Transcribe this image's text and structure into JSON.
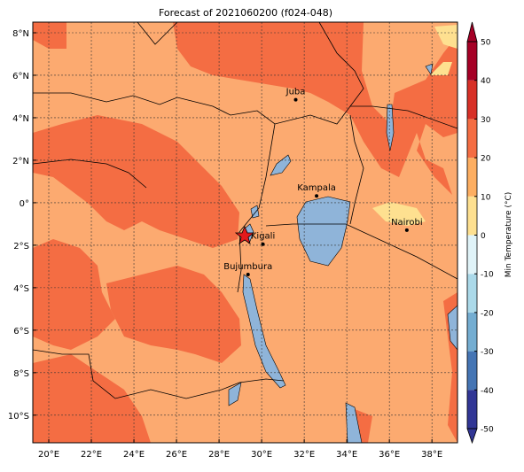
{
  "title": "Forecast of 2021060200 (f024-048)",
  "map": {
    "xlim": [
      19.25,
      39.2
    ],
    "ylim": [
      -11.3,
      8.5
    ],
    "xticks": [
      {
        "value": 20,
        "label": "20°E"
      },
      {
        "value": 22,
        "label": "22°E"
      },
      {
        "value": 24,
        "label": "24°E"
      },
      {
        "value": 26,
        "label": "26°E"
      },
      {
        "value": 28,
        "label": "28°E"
      },
      {
        "value": 30,
        "label": "30°E"
      },
      {
        "value": 32,
        "label": "32°E"
      },
      {
        "value": 34,
        "label": "34°E"
      },
      {
        "value": 36,
        "label": "36°E"
      },
      {
        "value": 38,
        "label": "38°E"
      }
    ],
    "yticks": [
      {
        "value": 8,
        "label": "8°N"
      },
      {
        "value": 6,
        "label": "6°N"
      },
      {
        "value": 4,
        "label": "4°N"
      },
      {
        "value": 2,
        "label": "2°N"
      },
      {
        "value": 0,
        "label": "0°"
      },
      {
        "value": -2,
        "label": "2°S"
      },
      {
        "value": -4,
        "label": "4°S"
      },
      {
        "value": -6,
        "label": "6°S"
      },
      {
        "value": -8,
        "label": "8°S"
      },
      {
        "value": -10,
        "label": "10°S"
      }
    ],
    "grid": true,
    "cities": [
      {
        "name": "Juba",
        "lon": 31.6,
        "lat": 4.85
      },
      {
        "name": "Kampala",
        "lon": 32.58,
        "lat": 0.32
      },
      {
        "name": "Nairobi",
        "lon": 36.82,
        "lat": -1.29
      },
      {
        "name": "Kigali",
        "lon": 30.06,
        "lat": -1.95
      },
      {
        "name": "Bujumbura",
        "lon": 29.36,
        "lat": -3.38
      }
    ]
  },
  "colorbar": {
    "label": "Min Temperature (°C)",
    "ticks": [
      -50,
      -40,
      -30,
      -20,
      -10,
      0,
      10,
      20,
      30,
      40,
      50
    ],
    "colors": [
      "#313695",
      "#4575b4",
      "#74add1",
      "#abd9e9",
      "#e0f3f8",
      "#fee090",
      "#fdae61",
      "#f46d43",
      "#d73027",
      "#a50026"
    ]
  }
}
